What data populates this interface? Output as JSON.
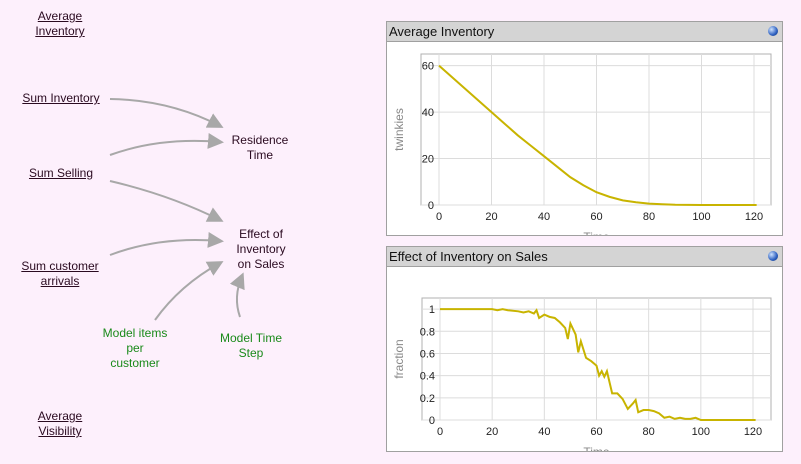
{
  "diagram": {
    "nodes": {
      "avg_inventory": "Average Inventory",
      "sum_inventory": "Sum Inventory",
      "sum_selling": "Sum Selling",
      "sum_arrivals": "Sum customer arrivals",
      "residence_time": "Residence Time",
      "effect": "Effect of Inventory on Sales",
      "items_per_customer": "Model items per customer",
      "time_step": "Model Time Step",
      "avg_visibility": "Average Visibility"
    }
  },
  "chart_data": [
    {
      "type": "line",
      "title": "Average Inventory",
      "xlabel": "Time",
      "ylabel": "twinkies",
      "xlim": [
        0,
        120
      ],
      "ylim": [
        0,
        65
      ],
      "xticks": [
        0,
        20,
        40,
        60,
        80,
        100,
        120
      ],
      "yticks": [
        0,
        20,
        40,
        60
      ],
      "grid": true,
      "color": "#c8b400",
      "x": [
        0,
        5,
        10,
        15,
        20,
        25,
        30,
        35,
        40,
        45,
        50,
        55,
        60,
        65,
        70,
        75,
        80,
        85,
        90,
        100,
        110,
        121
      ],
      "y": [
        60,
        55,
        50,
        45,
        40,
        35,
        30,
        25.5,
        21,
        16.5,
        12,
        8.5,
        5.5,
        3.5,
        2,
        1.2,
        0.6,
        0.3,
        0.1,
        0,
        0,
        0
      ]
    },
    {
      "type": "line",
      "title": "Effect of Inventory on Sales",
      "xlabel": "Time",
      "ylabel": "fraction",
      "xlim": [
        0,
        120
      ],
      "ylim": [
        0,
        1.1
      ],
      "xticks": [
        0,
        20,
        40,
        60,
        80,
        100,
        120
      ],
      "yticks": [
        0,
        0.2,
        0.4,
        0.6,
        0.8,
        1
      ],
      "ytick_labels": [
        "0",
        "0.2",
        "0.4",
        "0.6",
        "0.8",
        "1"
      ],
      "grid": true,
      "color": "#c8b400",
      "x": [
        0,
        20,
        22,
        24,
        26,
        30,
        32,
        34,
        36,
        37,
        38,
        40,
        42,
        44,
        46,
        48,
        49,
        50,
        52,
        53,
        54,
        56,
        58,
        60,
        61,
        62,
        63,
        64,
        66,
        68,
        70,
        72,
        74,
        75,
        76,
        78,
        80,
        82,
        84,
        86,
        88,
        90,
        92,
        94,
        96,
        98,
        100,
        110,
        121
      ],
      "y": [
        1,
        1,
        0.99,
        1,
        0.99,
        0.98,
        0.97,
        0.98,
        0.96,
        0.99,
        0.92,
        0.95,
        0.93,
        0.92,
        0.88,
        0.83,
        0.73,
        0.87,
        0.77,
        0.61,
        0.71,
        0.56,
        0.53,
        0.49,
        0.4,
        0.44,
        0.39,
        0.44,
        0.24,
        0.24,
        0.19,
        0.1,
        0.15,
        0.18,
        0.07,
        0.09,
        0.09,
        0.08,
        0.06,
        0.02,
        0.03,
        0.01,
        0.02,
        0.01,
        0.01,
        0.02,
        0,
        0,
        0
      ]
    }
  ]
}
